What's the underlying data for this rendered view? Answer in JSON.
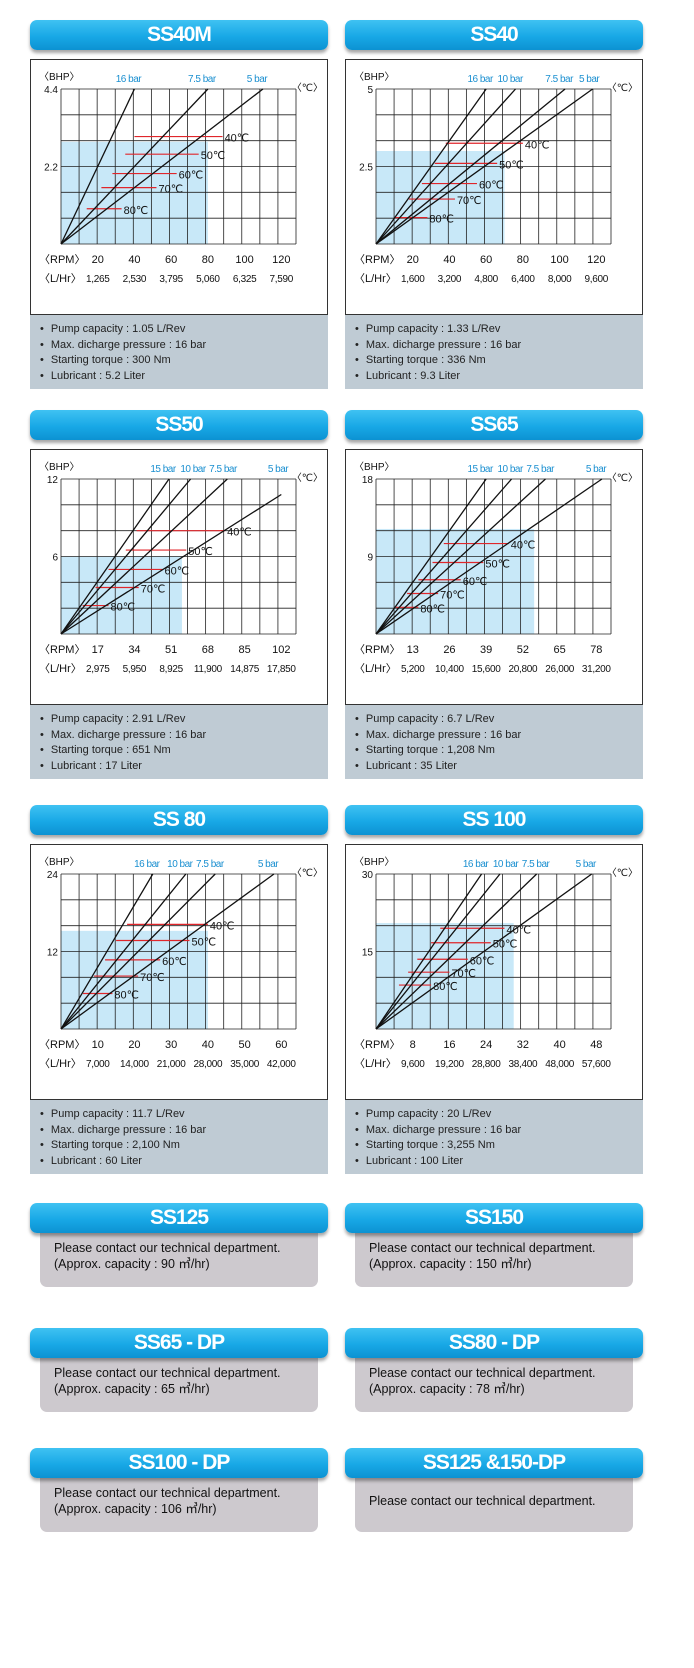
{
  "colors": {
    "title_bar": "#18a8e6",
    "pressure_label": "#1a8fd0",
    "temp_line": "#e0262b",
    "shade": "#c8e8f8",
    "spec_panel": "#bfcbd4",
    "contact_panel": "#cdc9ce"
  },
  "chart_data": [
    {
      "type": "line",
      "title": "SS40M",
      "ylabel": "〈BHP〉",
      "ymax_label": "4.4",
      "ymid_label": "2.2",
      "ylim": [
        0,
        4.4
      ],
      "temp_unit": "〈℃〉",
      "rpm_label": "〈RPM〉",
      "lhr_label": "〈L/Hr〉",
      "rpm_ticks": [
        "20",
        "40",
        "60",
        "80",
        "100",
        "120"
      ],
      "lhr_ticks": [
        "1,265",
        "2,530",
        "3,795",
        "5,060",
        "6,325",
        "7,590"
      ],
      "series": [
        {
          "name": "16 bar",
          "end_rpm": 40,
          "end_bhp": 4.4
        },
        {
          "name": "7.5 bar",
          "end_rpm": 80,
          "end_bhp": 4.4
        },
        {
          "name": "5 bar",
          "end_rpm": 110,
          "end_bhp": 4.4
        }
      ],
      "temps": [
        {
          "name": "40℃",
          "bhp": 3.05,
          "start_rpm": 40,
          "end_rpm": 88
        },
        {
          "name": "50℃",
          "bhp": 2.55,
          "start_rpm": 35,
          "end_rpm": 75
        },
        {
          "name": "60℃",
          "bhp": 2.0,
          "start_rpm": 28,
          "end_rpm": 63
        },
        {
          "name": "70℃",
          "bhp": 1.6,
          "start_rpm": 22,
          "end_rpm": 52
        },
        {
          "name": "80℃",
          "bhp": 1.0,
          "start_rpm": 14,
          "end_rpm": 33
        }
      ],
      "shade_rpm": 80,
      "shade_bhp": 2.9
    },
    {
      "type": "line",
      "title": "SS40",
      "ylabel": "〈BHP〉",
      "ymax_label": "5",
      "ymid_label": "2.5",
      "ylim": [
        0,
        5
      ],
      "temp_unit": "〈℃〉",
      "rpm_label": "〈RPM〉",
      "lhr_label": "〈L/Hr〉",
      "rpm_ticks": [
        "20",
        "40",
        "60",
        "80",
        "100",
        "120"
      ],
      "lhr_ticks": [
        "1,600",
        "3,200",
        "4,800",
        "6,400",
        "8,000",
        "9,600"
      ],
      "series": [
        {
          "name": "16 bar",
          "end_rpm": 60,
          "end_bhp": 5
        },
        {
          "name": "10 bar",
          "end_rpm": 76,
          "end_bhp": 5
        },
        {
          "name": "7.5 bar",
          "end_rpm": 103,
          "end_bhp": 5
        },
        {
          "name": "5 bar",
          "end_rpm": 118,
          "end_bhp": 5
        }
      ],
      "temps": [
        {
          "name": "40℃",
          "bhp": 3.25,
          "start_rpm": 38,
          "end_rpm": 80
        },
        {
          "name": "50℃",
          "bhp": 2.6,
          "start_rpm": 32,
          "end_rpm": 66
        },
        {
          "name": "60℃",
          "bhp": 1.95,
          "start_rpm": 25,
          "end_rpm": 55
        },
        {
          "name": "70℃",
          "bhp": 1.45,
          "start_rpm": 18,
          "end_rpm": 43
        },
        {
          "name": "80℃",
          "bhp": 0.85,
          "start_rpm": 10,
          "end_rpm": 28
        }
      ],
      "shade_rpm": 70,
      "shade_bhp": 3.0
    },
    {
      "type": "line",
      "title": "SS50",
      "ylabel": "〈BHP〉",
      "ymax_label": "12",
      "ymid_label": "6",
      "ylim": [
        0,
        12
      ],
      "temp_unit": "〈℃〉",
      "rpm_label": "〈RPM〉",
      "lhr_label": "〈L/Hr〉",
      "rpm_ticks": [
        "17",
        "34",
        "51",
        "68",
        "85",
        "102"
      ],
      "lhr_ticks": [
        "2,975",
        "5,950",
        "8,925",
        "11,900",
        "14,875",
        "17,850"
      ],
      "series": [
        {
          "name": "15 bar",
          "end_rpm": 50,
          "end_bhp": 12
        },
        {
          "name": "10 bar",
          "end_rpm": 60,
          "end_bhp": 12
        },
        {
          "name": "7.5 bar",
          "end_rpm": 77,
          "end_bhp": 12
        },
        {
          "name": "5 bar",
          "end_rpm": 102,
          "end_bhp": 10.8
        }
      ],
      "temps": [
        {
          "name": "40℃",
          "bhp": 8.0,
          "start_rpm": 35,
          "end_rpm": 76
        },
        {
          "name": "50℃",
          "bhp": 6.5,
          "start_rpm": 30,
          "end_rpm": 58
        },
        {
          "name": "60℃",
          "bhp": 5.0,
          "start_rpm": 22,
          "end_rpm": 47
        },
        {
          "name": "70℃",
          "bhp": 3.6,
          "start_rpm": 16,
          "end_rpm": 36
        },
        {
          "name": "80℃",
          "bhp": 2.2,
          "start_rpm": 10,
          "end_rpm": 22
        }
      ],
      "shade_rpm": 56,
      "shade_bhp": 6.0
    },
    {
      "type": "line",
      "title": "SS65",
      "ylabel": "〈BHP〉",
      "ymax_label": "18",
      "ymid_label": "9",
      "ylim": [
        0,
        18
      ],
      "temp_unit": "〈℃〉",
      "rpm_label": "〈RPM〉",
      "lhr_label": "〈L/Hr〉",
      "rpm_ticks": [
        "13",
        "26",
        "39",
        "52",
        "65",
        "78"
      ],
      "lhr_ticks": [
        "5,200",
        "10,400",
        "15,600",
        "20,800",
        "26,000",
        "31,200"
      ],
      "series": [
        {
          "name": "15 bar",
          "end_rpm": 39,
          "end_bhp": 18
        },
        {
          "name": "10 bar",
          "end_rpm": 48,
          "end_bhp": 18
        },
        {
          "name": "7.5 bar",
          "end_rpm": 60,
          "end_bhp": 18
        },
        {
          "name": "5 bar",
          "end_rpm": 80,
          "end_bhp": 18
        }
      ],
      "temps": [
        {
          "name": "40℃",
          "bhp": 10.5,
          "start_rpm": 24,
          "end_rpm": 47
        },
        {
          "name": "50℃",
          "bhp": 8.3,
          "start_rpm": 20,
          "end_rpm": 38
        },
        {
          "name": "60℃",
          "bhp": 6.3,
          "start_rpm": 15,
          "end_rpm": 30
        },
        {
          "name": "70℃",
          "bhp": 4.7,
          "start_rpm": 11,
          "end_rpm": 22
        },
        {
          "name": "80℃",
          "bhp": 3.1,
          "start_rpm": 7,
          "end_rpm": 15
        }
      ],
      "shade_rpm": 56,
      "shade_bhp": 12.2
    },
    {
      "type": "line",
      "title": "SS 80",
      "ylabel": "〈BHP〉",
      "ymax_label": "24",
      "ymid_label": "12",
      "ylim": [
        0,
        24
      ],
      "temp_unit": "〈℃〉",
      "rpm_label": "〈RPM〉",
      "lhr_label": "〈L/Hr〉",
      "rpm_ticks": [
        "10",
        "20",
        "30",
        "40",
        "50",
        "60"
      ],
      "lhr_ticks": [
        "7,000",
        "14,000",
        "21,000",
        "28,000",
        "35,000",
        "42,000"
      ],
      "series": [
        {
          "name": "16 bar",
          "end_rpm": 25,
          "end_bhp": 24
        },
        {
          "name": "10 bar",
          "end_rpm": 34,
          "end_bhp": 24
        },
        {
          "name": "7.5 bar",
          "end_rpm": 42,
          "end_bhp": 24
        },
        {
          "name": "5 bar",
          "end_rpm": 58,
          "end_bhp": 24
        }
      ],
      "temps": [
        {
          "name": "40℃",
          "bhp": 16.2,
          "start_rpm": 18,
          "end_rpm": 40
        },
        {
          "name": "50℃",
          "bhp": 13.7,
          "start_rpm": 15,
          "end_rpm": 35
        },
        {
          "name": "60℃",
          "bhp": 10.7,
          "start_rpm": 12,
          "end_rpm": 27
        },
        {
          "name": "70℃",
          "bhp": 8.2,
          "start_rpm": 9,
          "end_rpm": 21
        },
        {
          "name": "80℃",
          "bhp": 5.5,
          "start_rpm": 6,
          "end_rpm": 14
        }
      ],
      "shade_rpm": 40,
      "shade_bhp": 15.2
    },
    {
      "type": "line",
      "title": "SS 100",
      "ylabel": "〈BHP〉",
      "ymax_label": "30",
      "ymid_label": "15",
      "ylim": [
        0,
        30
      ],
      "temp_unit": "〈℃〉",
      "rpm_label": "〈RPM〉",
      "lhr_label": "〈L/Hr〉",
      "rpm_ticks": [
        "8",
        "16",
        "24",
        "32",
        "40",
        "48"
      ],
      "lhr_ticks": [
        "9,600",
        "19,200",
        "28,800",
        "38,400",
        "48,000",
        "57,600"
      ],
      "series": [
        {
          "name": "16 bar",
          "end_rpm": 23,
          "end_bhp": 30
        },
        {
          "name": "10 bar",
          "end_rpm": 27,
          "end_bhp": 30
        },
        {
          "name": "7.5 bar",
          "end_rpm": 35,
          "end_bhp": 30
        },
        {
          "name": "5 bar",
          "end_rpm": 47,
          "end_bhp": 30
        }
      ],
      "temps": [
        {
          "name": "40℃",
          "bhp": 19.5,
          "start_rpm": 14,
          "end_rpm": 28
        },
        {
          "name": "50℃",
          "bhp": 16.7,
          "start_rpm": 12,
          "end_rpm": 25
        },
        {
          "name": "60℃",
          "bhp": 13.5,
          "start_rpm": 9,
          "end_rpm": 20
        },
        {
          "name": "70℃",
          "bhp": 11.0,
          "start_rpm": 7,
          "end_rpm": 16
        },
        {
          "name": "80℃",
          "bhp": 8.5,
          "start_rpm": 5,
          "end_rpm": 12
        }
      ],
      "shade_rpm": 30,
      "shade_bhp": 20.5
    }
  ],
  "specs": [
    [
      "Pump capacity : 1.05 L/Rev",
      "Max. dicharge pressure : 16 bar",
      "Starting torque : 300 Nm",
      "Lubricant : 5.2 Liter"
    ],
    [
      "Pump capacity : 1.33 L/Rev",
      "Max. dicharge pressure : 16 bar",
      "Starting torque : 336 Nm",
      "Lubricant : 9.3 Liter"
    ],
    [
      "Pump capacity : 2.91 L/Rev",
      "Max. dicharge pressure : 16 bar",
      "Starting torque : 651 Nm",
      "Lubricant : 17 Liter"
    ],
    [
      "Pump capacity : 6.7 L/Rev",
      "Max. dicharge pressure : 16 bar",
      "Starting torque : 1,208 Nm",
      "Lubricant : 35 Liter"
    ],
    [
      "Pump capacity : 11.7 L/Rev",
      "Max. dicharge pressure : 16 bar",
      "Starting torque : 2,100 Nm",
      "Lubricant : 60 Liter"
    ],
    [
      "Pump capacity : 20 L/Rev",
      "Max. dicharge pressure : 16 bar",
      "Starting torque : 3,255 Nm",
      "Lubricant : 100 Liter"
    ]
  ],
  "contacts": [
    {
      "title": "SS125",
      "line1": "Please contact our technical department.",
      "line2": "(Approx. capacity : 90 ㎥/hr)"
    },
    {
      "title": "SS150",
      "line1": "Please contact our technical department.",
      "line2": "(Approx. capacity : 150 ㎥/hr)"
    },
    {
      "title": "SS65 - DP",
      "line1": "Please contact our technical department.",
      "line2": "(Approx. capacity : 65 ㎥/hr)"
    },
    {
      "title": "SS80 - DP",
      "line1": "Please contact our technical department.",
      "line2": "(Approx. capacity : 78 ㎥/hr)"
    },
    {
      "title": "SS100 - DP",
      "line1": "Please contact our technical department.",
      "line2": "(Approx. capacity : 106 ㎥/hr)"
    },
    {
      "title": "SS125 &150-DP",
      "line1": "Please contact our technical department.",
      "line2": ""
    }
  ]
}
